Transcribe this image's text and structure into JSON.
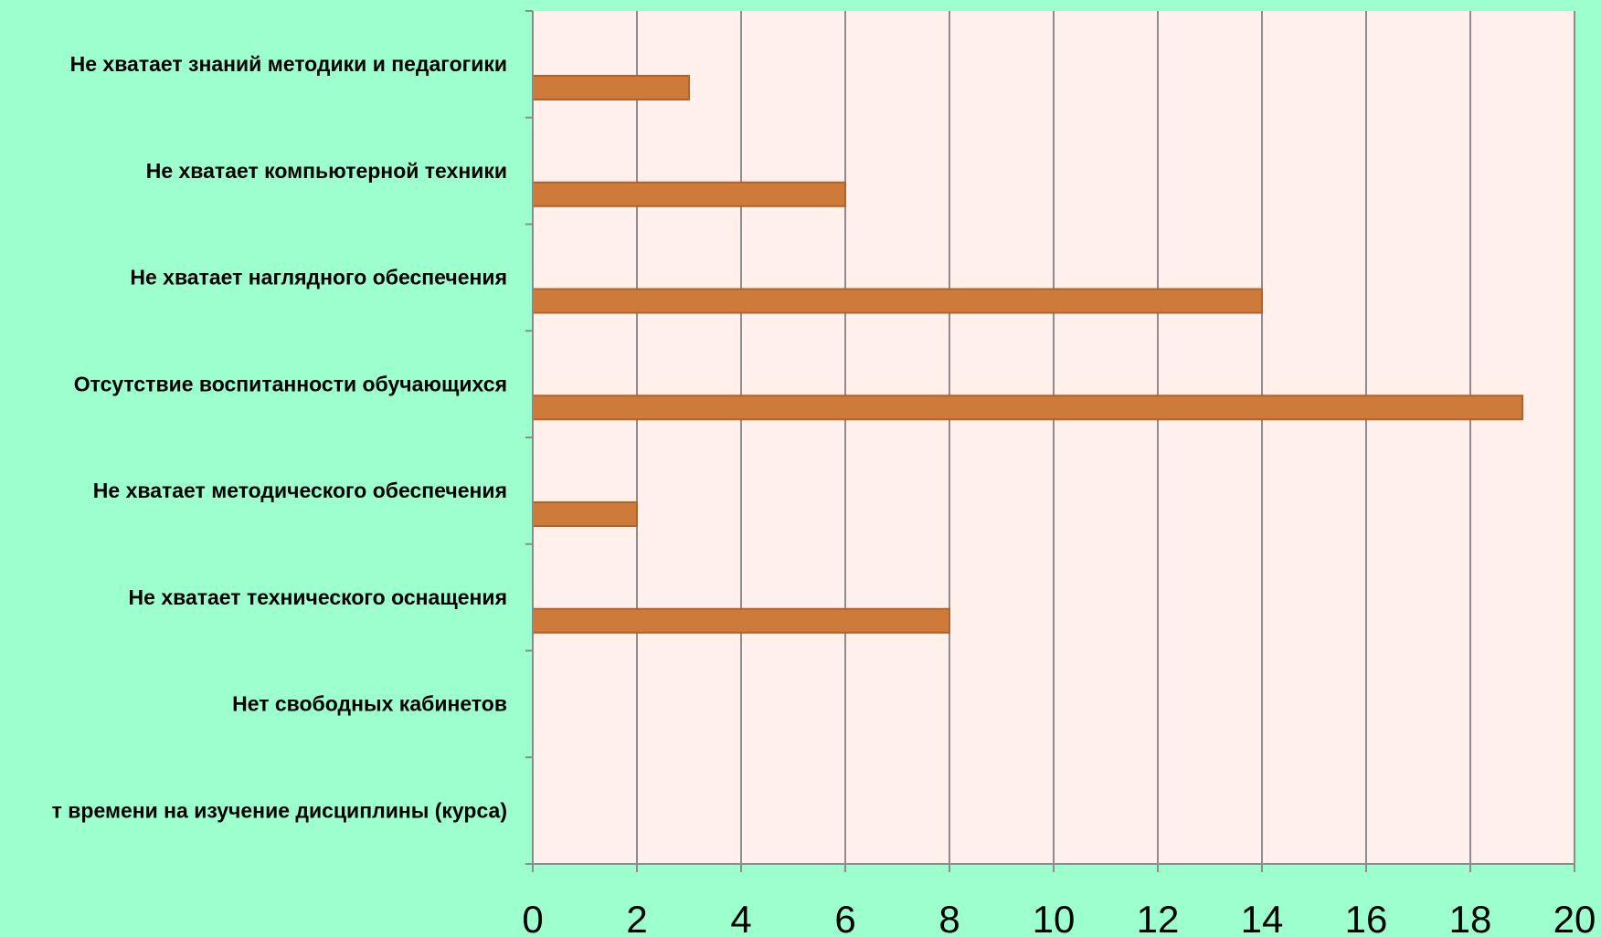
{
  "chart_data": {
    "type": "bar",
    "orientation": "horizontal",
    "title": "",
    "xlabel": "",
    "ylabel": "",
    "categories": [
      "Не хватает знаний методики и педагогики",
      "Не хватает компьютерной техники",
      "Не хватает наглядного обеспечения",
      "Отсутствие воспитанности обучающихся",
      "Не хватает методического обеспечения",
      "Не хватает технического оснащения",
      "Нет свободных кабинетов",
      "т времени на изучение дисциплины (курса)"
    ],
    "values": [
      3,
      6,
      14,
      19,
      2,
      8,
      0,
      0
    ],
    "xlim": [
      0,
      20
    ],
    "ticks": [
      "0",
      "2",
      "4",
      "6",
      "8",
      "10",
      "12",
      "14",
      "16",
      "18",
      "20"
    ],
    "grid": "vertical",
    "legend": "none",
    "colors": {
      "background": "#9dffcd",
      "plot_area": "#fff0ec",
      "bar_fill": "#cd7a3a",
      "bar_stroke": "#b0622a",
      "grid": "#8c8c8c"
    }
  }
}
